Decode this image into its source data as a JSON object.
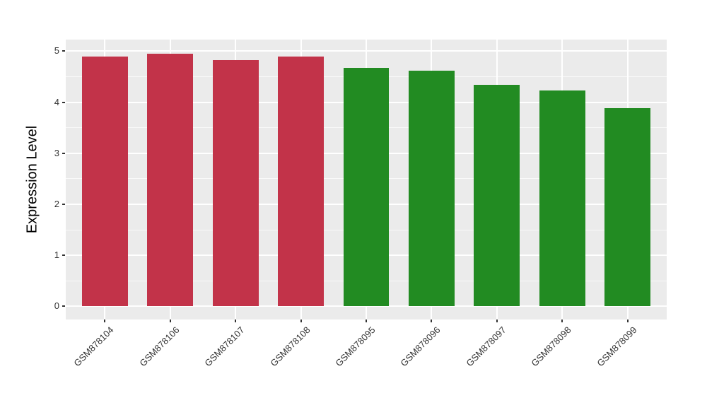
{
  "chart_data": {
    "type": "bar",
    "title": "",
    "xlabel": "",
    "ylabel": "Expression Level",
    "categories": [
      "GSM878104",
      "GSM878106",
      "GSM878107",
      "GSM878108",
      "GSM878095",
      "GSM878096",
      "GSM878097",
      "GSM878098",
      "GSM878099"
    ],
    "values": [
      4.9,
      4.95,
      4.82,
      4.9,
      4.67,
      4.62,
      4.34,
      4.23,
      3.88
    ],
    "bar_colors": [
      "#C23349",
      "#C23349",
      "#C23349",
      "#C23349",
      "#228B22",
      "#228B22",
      "#228B22",
      "#228B22",
      "#228B22"
    ],
    "yticks": [
      0,
      1,
      2,
      3,
      4,
      5
    ],
    "ylim": [
      0,
      5.2
    ],
    "bar_width_fraction": 0.7,
    "grid": true,
    "legend_position": "none",
    "x_label_angle_deg": 45,
    "panel_bg": "#EBEBEB",
    "grid_color": "#FFFFFF",
    "axis_text_color": "#333333",
    "axis_title_color": "#000000"
  }
}
